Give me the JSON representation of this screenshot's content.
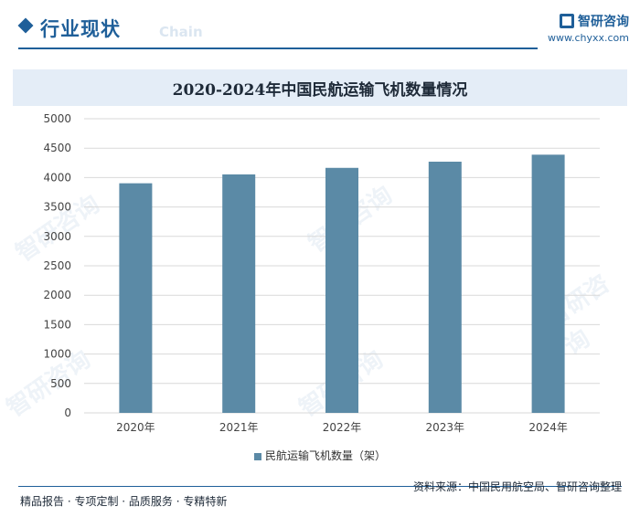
{
  "header": {
    "section_title": "行业现状",
    "watermark_text": "Chain",
    "brand_name": "智研咨询",
    "brand_url": "www.chyxx.com"
  },
  "chart_data": {
    "type": "bar",
    "title": "2020-2024年中国民航运输飞机数量情况",
    "categories": [
      "2020年",
      "2021年",
      "2022年",
      "2023年",
      "2024年"
    ],
    "series": [
      {
        "name": "民航运输飞机数量（架）",
        "values": [
          3903,
          4054,
          4165,
          4270,
          4389
        ]
      }
    ],
    "ylim": [
      0,
      5000
    ],
    "yticks": [
      0,
      500,
      1000,
      1500,
      2000,
      2500,
      3000,
      3500,
      4000,
      4500,
      5000
    ],
    "grid": true,
    "legend": "bottom",
    "bar_color": "#5b8aa6"
  },
  "footer": {
    "left": "精品报告 · 专项定制 · 品质服务 · 专精特新",
    "source": "资料来源：中国民用航空局、智研咨询整理"
  }
}
